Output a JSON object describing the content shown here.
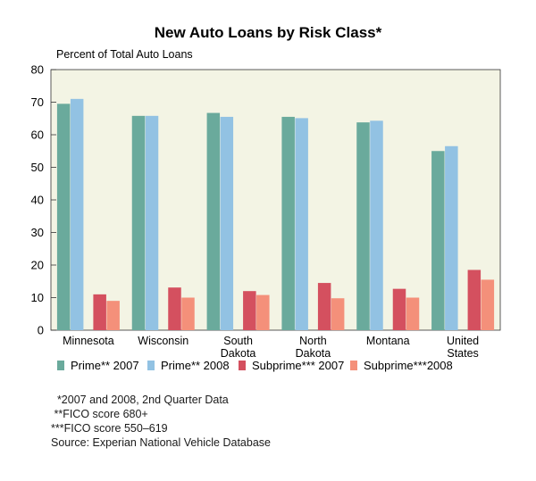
{
  "chart_data": {
    "type": "bar",
    "title": "New Auto Loans by Risk Class*",
    "ylabel": "Percent of Total Auto Loans",
    "xlabel": "",
    "ylim": [
      0,
      80
    ],
    "yticks": [
      0,
      10,
      20,
      30,
      40,
      50,
      60,
      70,
      80
    ],
    "categories": [
      [
        "Minnesota"
      ],
      [
        "Wisconsin"
      ],
      [
        "South",
        "Dakota"
      ],
      [
        "North",
        "Dakota"
      ],
      [
        "Montana"
      ],
      [
        "United",
        "States"
      ]
    ],
    "series": [
      {
        "name": "Prime** 2007",
        "color": "#6aaa9c",
        "values": [
          69.5,
          65.8,
          66.7,
          65.5,
          63.8,
          55.0
        ]
      },
      {
        "name": "Prime** 2008",
        "color": "#92c2e3",
        "values": [
          71.0,
          65.8,
          65.5,
          65.1,
          64.3,
          56.5
        ]
      },
      {
        "name": "Subprime*** 2007",
        "color": "#d4505f",
        "values": [
          11.0,
          13.1,
          12.0,
          14.5,
          12.7,
          18.5
        ]
      },
      {
        "name": "Subprime***2008",
        "color": "#f4907a",
        "values": [
          9.0,
          10.0,
          10.8,
          9.8,
          10.0,
          15.5
        ]
      }
    ],
    "grid": false,
    "plot_background": "#f3f4e4",
    "legend_position": "bottom"
  },
  "footnotes": [
    "  *2007 and 2008, 2nd Quarter Data",
    " **FICO score 680+",
    "***FICO score 550–619"
  ],
  "source": "Source: Experian National Vehicle Database"
}
